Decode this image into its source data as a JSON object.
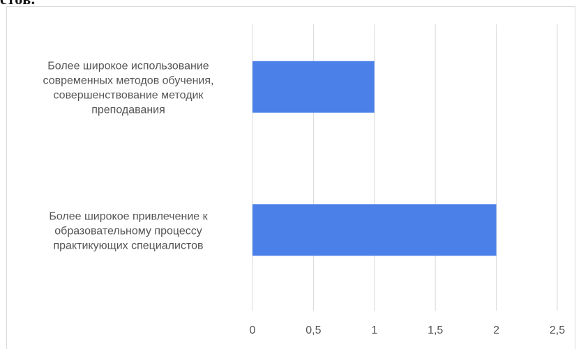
{
  "page": {
    "top_fragment": "стов."
  },
  "chart_data": {
    "type": "bar",
    "orientation": "horizontal",
    "categories": [
      [
        "Более широкое использование",
        "современных методов обучения,",
        "совершенствование методик",
        "преподавания"
      ],
      [
        "Более широкое привлечение к",
        "образовательному процессу",
        "практикующих  специалистов"
      ]
    ],
    "values": [
      1,
      2
    ],
    "xlim": [
      0,
      2.5
    ],
    "ticks": [
      0,
      0.5,
      1,
      1.5,
      2,
      2.5
    ],
    "tick_labels": [
      "0",
      "0,5",
      "1",
      "1,5",
      "2",
      "2,5"
    ],
    "grid": true,
    "colors": {
      "bar": "#4a80e8",
      "grid": "#d9d9d9",
      "text": "#555555"
    }
  }
}
